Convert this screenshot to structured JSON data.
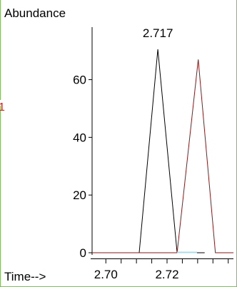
{
  "chart_data": {
    "type": "line",
    "ylabel": "Abundance",
    "xlabel": "Time-->",
    "x_ticks": [
      2.7,
      2.72
    ],
    "x_tick_labels": [
      "2.70",
      "2.72"
    ],
    "x_minor_ticks": [
      2.7,
      2.705,
      2.71,
      2.715,
      2.72,
      2.725,
      2.73,
      2.735,
      2.74
    ],
    "y_ticks": [
      0,
      20,
      40,
      60
    ],
    "y_tick_labels": [
      "0",
      "20",
      "40",
      "60"
    ],
    "xlim": [
      2.6955,
      2.7417
    ],
    "ylim": [
      0,
      74
    ],
    "grid": false,
    "series": [
      {
        "color": "#000000",
        "points": [
          [
            2.6955,
            0
          ],
          [
            2.7109,
            0
          ],
          [
            2.717,
            70.5
          ],
          [
            2.7233,
            0
          ],
          [
            2.7323,
            0
          ]
        ]
      },
      {
        "color": "#8b1a1a",
        "points": [
          [
            2.6955,
            0
          ],
          [
            2.7233,
            0
          ],
          [
            2.7302,
            67
          ],
          [
            2.7358,
            0
          ],
          [
            2.7417,
            0
          ]
        ]
      }
    ],
    "baseline_segment": {
      "color": "#a8dce8",
      "x": [
        2.7233,
        2.7298
      ]
    },
    "annotations": [
      {
        "text": "2.717",
        "x": 2.717,
        "y": 70.5
      }
    ]
  },
  "frame": {
    "border_color": "#7fbf5f",
    "left_margin_mark": "1",
    "left_margin_mark_color": "#cc2222"
  }
}
